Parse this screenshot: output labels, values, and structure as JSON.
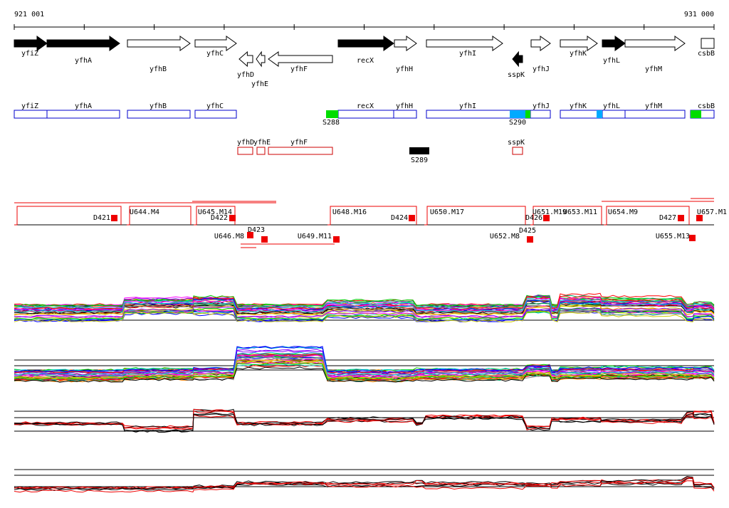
{
  "ruler": {
    "start": "921 001",
    "end": "931 000"
  },
  "genes": [
    "yfiZ",
    "yfhA",
    "yfhB",
    "yfhC",
    "yfhD",
    "yfhE",
    "yfhF",
    "recX",
    "yfhH",
    "yfhI",
    "sspK",
    "yfhJ",
    "yfhK",
    "yfhL",
    "yfhM",
    "csbB"
  ],
  "features": [
    "yfiZ",
    "yfhA",
    "yfhB",
    "yfhC",
    "recX",
    "yfhH",
    "yfhI",
    "yfhJ",
    "yfhK",
    "yfhL",
    "yfhM",
    "csbB"
  ],
  "feature_tags": [
    "S288",
    "S290"
  ],
  "other_genes": [
    "yfhD",
    "yfhE",
    "yfhF",
    "sspK"
  ],
  "other_tags": [
    "S289"
  ],
  "transcripts": [
    "D421",
    "U644.M4",
    "U645.M14",
    "D422",
    "U646.M8",
    "D423",
    "U649.M11",
    "U648.M16",
    "D424",
    "U650.M17",
    "D426",
    "U651.M19",
    "U652.M8",
    "D425",
    "U653.M11",
    "U654.M9",
    "D427",
    "U655.M13",
    "U657.M1"
  ]
}
